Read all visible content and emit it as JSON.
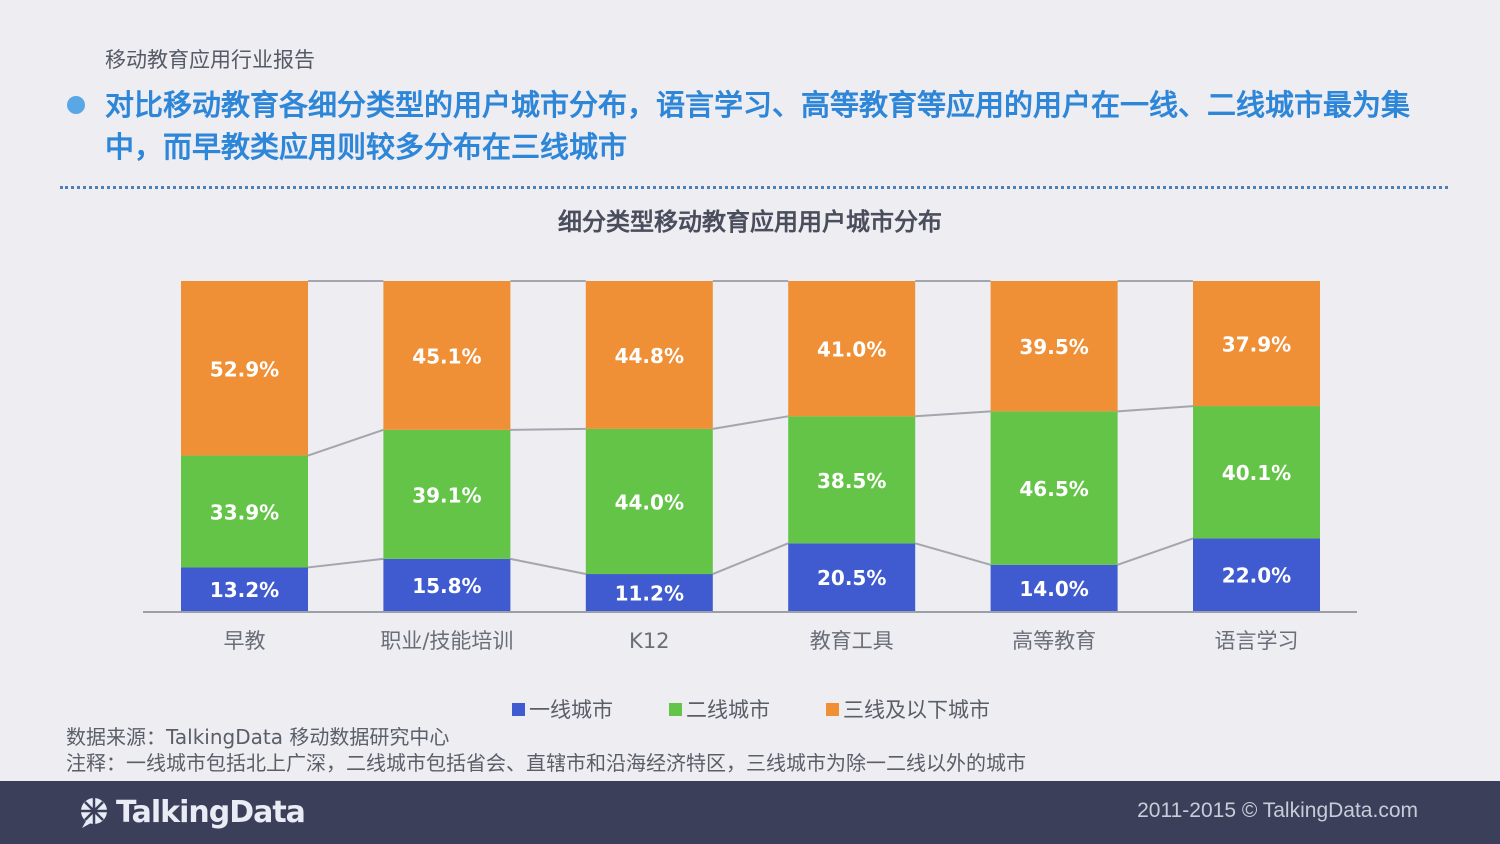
{
  "header": {
    "report_label": "移动教育应用行业报告",
    "headline": "对比移动教育各细分类型的用户城市分布，语言学习、高等教育等应用的用户在一线、二线城市最为集中，而早教类应用则较多分布在三线城市"
  },
  "chart_data": {
    "type": "bar",
    "stacked": true,
    "title": "细分类型移动教育应用用户城市分布",
    "categories": [
      "早教",
      "职业/技能培训",
      "K12",
      "教育工具",
      "高等教育",
      "语言学习"
    ],
    "series": [
      {
        "name": "一线城市",
        "color": "#3f5bcf",
        "values": [
          13.2,
          15.8,
          11.2,
          20.5,
          14.0,
          22.0
        ]
      },
      {
        "name": "二线城市",
        "color": "#64c448",
        "values": [
          33.9,
          39.1,
          44.0,
          38.5,
          46.5,
          40.1
        ]
      },
      {
        "name": "三线及以下城市",
        "color": "#ef8f36",
        "values": [
          52.9,
          45.1,
          44.8,
          41.0,
          39.5,
          37.9
        ]
      }
    ],
    "ylim": [
      0,
      100
    ],
    "value_suffix": "%",
    "legend": "bottom"
  },
  "notes": {
    "source": "数据来源：TalkingData 移动数据研究中心",
    "note": "注释：一线城市包括北上广深，二线城市包括省会、直辖市和沿海经济特区，三线城市为除一二线以外的城市"
  },
  "footer": {
    "logo_text": "TalkingData",
    "copyright": "2011-2015 © TalkingData.com"
  },
  "colors": {
    "accent": "#2e86d8",
    "footer_bg": "#3b3f5a"
  }
}
